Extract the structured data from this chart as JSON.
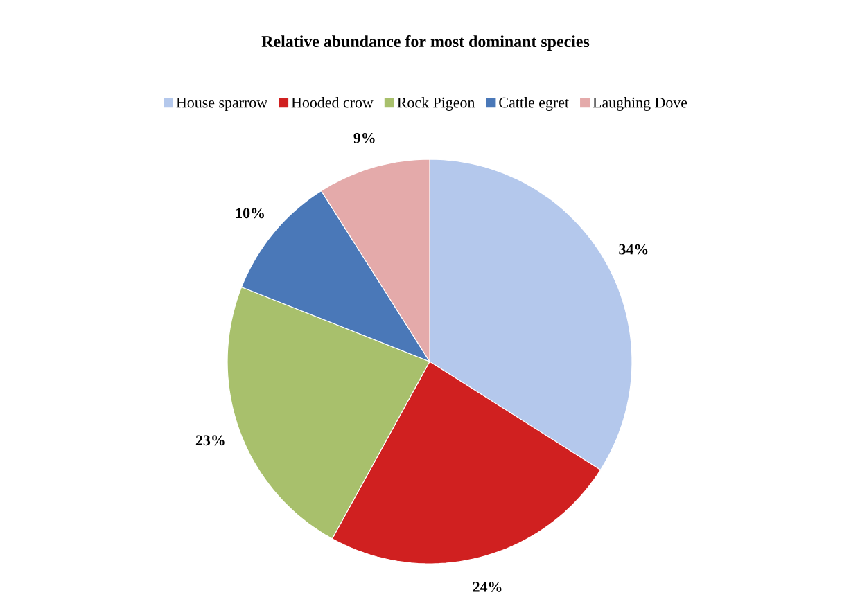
{
  "chart_data": {
    "type": "pie",
    "title": "Relative abundance for most dominant species",
    "categories": [
      "House sparrow",
      "Hooded crow",
      "Rock Pigeon",
      "Cattle egret",
      "Laughing Dove"
    ],
    "values": [
      34,
      24,
      23,
      10,
      9
    ],
    "colors": [
      "#b4c8ec",
      "#d02020",
      "#a8c06c",
      "#4a78b8",
      "#e4aaaa"
    ],
    "value_labels": [
      "34%",
      "24%",
      "23%",
      "10%",
      "9%"
    ],
    "legend": "top"
  }
}
